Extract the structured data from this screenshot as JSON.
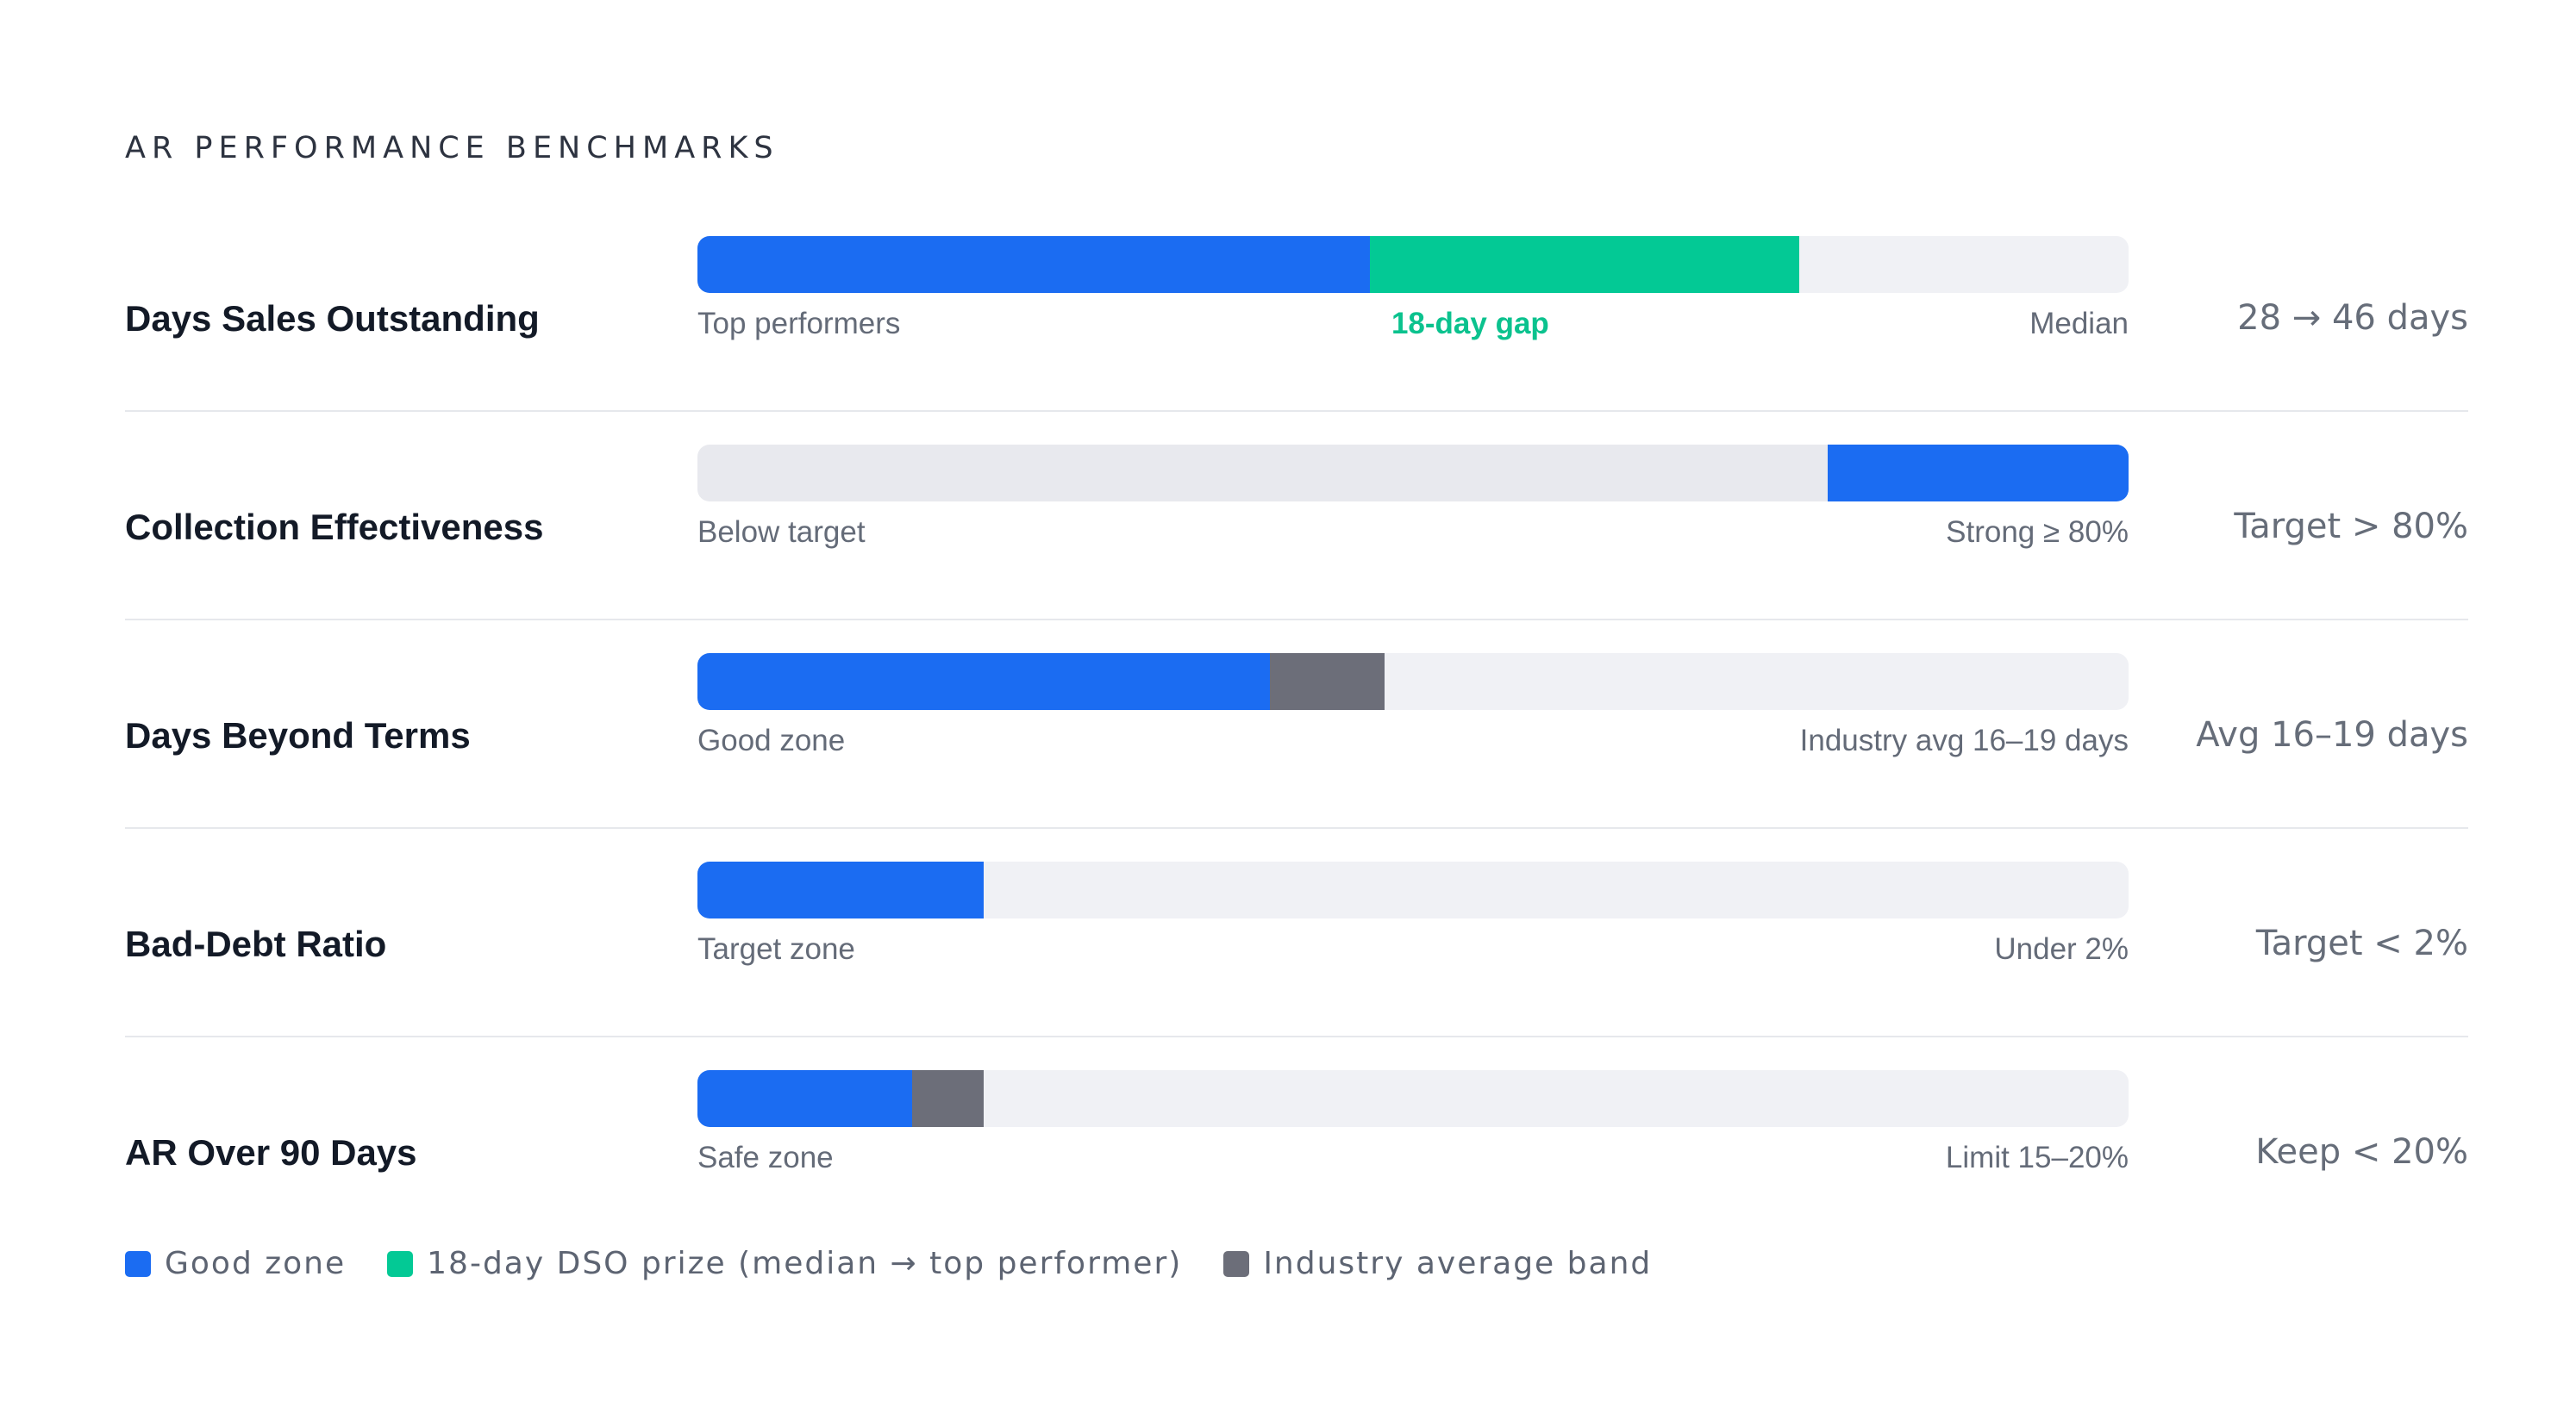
{
  "header": {
    "title": "AR PERFORMANCE BENCHMARKS"
  },
  "colors": {
    "good": "#1b6cf2",
    "prize": "#03c995",
    "band": "#6c6e79",
    "track_a": "#f0f1f5",
    "track_b": "#e8e9ee"
  },
  "chart_data": {
    "type": "bar",
    "scale": [
      0,
      100
    ],
    "rows": [
      {
        "metric": "Days Sales Outstanding",
        "value_text": "28 → 46 days",
        "left_label": "Top performers",
        "mid_label": "18-day gap",
        "mid_label_at": 54,
        "right_label": "Median",
        "track": "a",
        "segments": [
          {
            "kind": "good",
            "from": 0,
            "to": 47
          },
          {
            "kind": "prize",
            "from": 47,
            "to": 77
          }
        ]
      },
      {
        "metric": "Collection Effectiveness",
        "value_text": "Target > 80%",
        "left_label": "Below target",
        "right_label": "Strong ≥ 80%",
        "track": "b",
        "segments": [
          {
            "kind": "good",
            "from": 79,
            "to": 100
          }
        ]
      },
      {
        "metric": "Days Beyond Terms",
        "value_text": "Avg 16–19 days",
        "left_label": "Good zone",
        "right_label": "Industry avg 16–19 days",
        "track": "a",
        "segments": [
          {
            "kind": "good",
            "from": 0,
            "to": 40
          },
          {
            "kind": "band",
            "from": 40,
            "to": 48
          }
        ]
      },
      {
        "metric": "Bad-Debt Ratio",
        "value_text": "Target < 2%",
        "left_label": "Target zone",
        "right_label": "Under 2%",
        "track": "a",
        "segments": [
          {
            "kind": "good",
            "from": 0,
            "to": 20
          }
        ]
      },
      {
        "metric": "AR Over 90 Days",
        "value_text": "Keep < 20%",
        "left_label": "Safe zone",
        "right_label": "Limit 15–20%",
        "track": "a",
        "segments": [
          {
            "kind": "good",
            "from": 0,
            "to": 15
          },
          {
            "kind": "band",
            "from": 15,
            "to": 20
          }
        ]
      }
    ],
    "legend": [
      {
        "kind": "good",
        "label": "Good zone"
      },
      {
        "kind": "prize",
        "label": "18-day DSO prize (median → top performer)"
      },
      {
        "kind": "band",
        "label": "Industry average band"
      }
    ]
  }
}
